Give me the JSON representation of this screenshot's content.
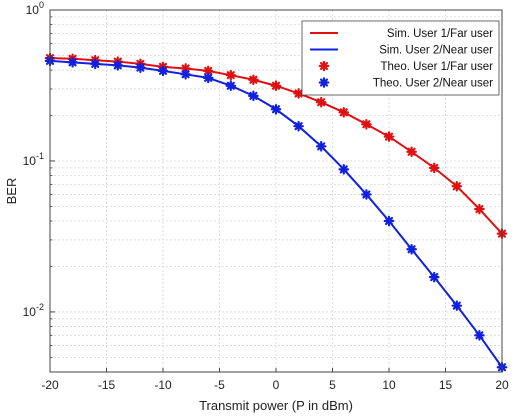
{
  "chart_data": {
    "type": "line",
    "title": "",
    "xlabel": "Transmit power (P in dBm)",
    "ylabel": "BER",
    "xlim": [
      -20,
      20
    ],
    "ylim": [
      0.004,
      1
    ],
    "yscale": "log",
    "grid": true,
    "legend_position": "top-right",
    "x_ticks": [
      -20,
      -15,
      -10,
      -5,
      0,
      5,
      10,
      15,
      20
    ],
    "y_ticks": [
      {
        "base": "10",
        "exp": "0",
        "value": 1
      },
      {
        "base": "10",
        "exp": "-1",
        "value": 0.1
      },
      {
        "base": "10",
        "exp": "-2",
        "value": 0.01
      }
    ],
    "x": [
      -20,
      -18,
      -16,
      -14,
      -12,
      -10,
      -8,
      -6,
      -4,
      -2,
      0,
      2,
      4,
      6,
      8,
      10,
      12,
      14,
      16,
      18,
      20
    ],
    "series": [
      {
        "name": "Sim. User 1/Far user",
        "style": "line",
        "color": "#e01010",
        "values": [
          0.48,
          0.475,
          0.465,
          0.455,
          0.44,
          0.42,
          0.41,
          0.395,
          0.37,
          0.345,
          0.315,
          0.28,
          0.245,
          0.21,
          0.175,
          0.145,
          0.115,
          0.09,
          0.068,
          0.048,
          0.033
        ]
      },
      {
        "name": "Sim. User 2/Near user",
        "style": "line",
        "color": "#1020e0",
        "values": [
          0.46,
          0.45,
          0.44,
          0.43,
          0.415,
          0.395,
          0.375,
          0.355,
          0.315,
          0.27,
          0.22,
          0.17,
          0.125,
          0.088,
          0.06,
          0.04,
          0.026,
          0.017,
          0.011,
          0.007,
          0.0043
        ]
      },
      {
        "name": "Theo. User 1/Far user",
        "style": "marker",
        "marker": "*",
        "color": "#e01010",
        "values": [
          0.48,
          0.475,
          0.465,
          0.455,
          0.44,
          0.42,
          0.41,
          0.395,
          0.37,
          0.345,
          0.315,
          0.28,
          0.245,
          0.21,
          0.175,
          0.145,
          0.115,
          0.09,
          0.068,
          0.048,
          0.033
        ]
      },
      {
        "name": "Theo. User 2/Near user",
        "style": "marker",
        "marker": "*",
        "color": "#1020e0",
        "values": [
          0.46,
          0.45,
          0.44,
          0.43,
          0.415,
          0.395,
          0.375,
          0.355,
          0.315,
          0.27,
          0.22,
          0.17,
          0.125,
          0.088,
          0.06,
          0.04,
          0.026,
          0.017,
          0.011,
          0.007,
          0.0043
        ]
      }
    ]
  }
}
